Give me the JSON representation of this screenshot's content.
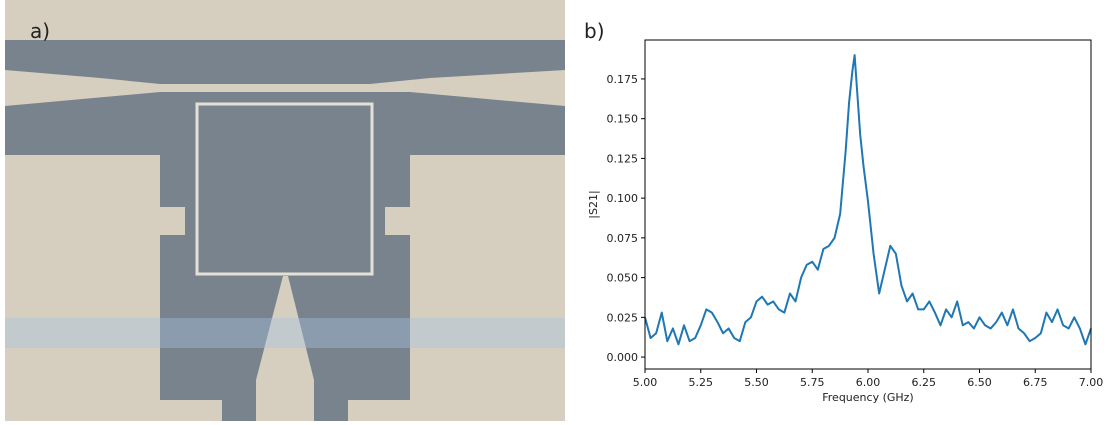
{
  "panel_labels": [
    "a)",
    "b)"
  ],
  "chart_data": {
    "type": "line",
    "xlabel": "Frequency (GHz)",
    "ylabel": "|S21|",
    "color": "#1f77b4",
    "x": [
      5.0,
      5.025,
      5.05,
      5.075,
      5.1,
      5.125,
      5.15,
      5.175,
      5.2,
      5.225,
      5.25,
      5.275,
      5.3,
      5.325,
      5.35,
      5.375,
      5.4,
      5.425,
      5.45,
      5.475,
      5.5,
      5.525,
      5.55,
      5.575,
      5.6,
      5.625,
      5.65,
      5.675,
      5.7,
      5.725,
      5.75,
      5.775,
      5.8,
      5.825,
      5.85,
      5.875,
      5.9,
      5.915,
      5.93,
      5.94,
      5.95,
      5.965,
      5.98,
      6.0,
      6.025,
      6.05,
      6.075,
      6.1,
      6.125,
      6.15,
      6.175,
      6.2,
      6.225,
      6.25,
      6.275,
      6.3,
      6.325,
      6.35,
      6.375,
      6.4,
      6.425,
      6.45,
      6.475,
      6.5,
      6.525,
      6.55,
      6.575,
      6.6,
      6.625,
      6.65,
      6.675,
      6.7,
      6.725,
      6.75,
      6.775,
      6.8,
      6.825,
      6.85,
      6.875,
      6.9,
      6.925,
      6.95,
      6.975,
      7.0
    ],
    "values": [
      0.025,
      0.012,
      0.015,
      0.028,
      0.01,
      0.018,
      0.008,
      0.02,
      0.01,
      0.012,
      0.02,
      0.03,
      0.028,
      0.022,
      0.015,
      0.018,
      0.012,
      0.01,
      0.022,
      0.025,
      0.035,
      0.038,
      0.033,
      0.035,
      0.03,
      0.028,
      0.04,
      0.035,
      0.05,
      0.058,
      0.06,
      0.055,
      0.068,
      0.07,
      0.075,
      0.09,
      0.13,
      0.16,
      0.18,
      0.19,
      0.17,
      0.14,
      0.12,
      0.098,
      0.065,
      0.04,
      0.055,
      0.07,
      0.065,
      0.045,
      0.035,
      0.04,
      0.03,
      0.03,
      0.035,
      0.028,
      0.02,
      0.03,
      0.025,
      0.035,
      0.02,
      0.022,
      0.018,
      0.025,
      0.02,
      0.018,
      0.022,
      0.028,
      0.02,
      0.03,
      0.018,
      0.015,
      0.01,
      0.012,
      0.015,
      0.028,
      0.022,
      0.03,
      0.02,
      0.018,
      0.025,
      0.018,
      0.008,
      0.018
    ],
    "xlim": [
      5.0,
      7.0
    ],
    "ylim": [
      -0.0075,
      0.1995
    ],
    "xticks": [
      {
        "value": 5.0,
        "label": "5.00"
      },
      {
        "value": 5.25,
        "label": "5.25"
      },
      {
        "value": 5.5,
        "label": "5.50"
      },
      {
        "value": 5.75,
        "label": "5.75"
      },
      {
        "value": 6.0,
        "label": "6.00"
      },
      {
        "value": 6.25,
        "label": "6.25"
      },
      {
        "value": 6.5,
        "label": "6.50"
      },
      {
        "value": 6.75,
        "label": "6.75"
      },
      {
        "value": 7.0,
        "label": "7.00"
      }
    ],
    "yticks": [
      {
        "value": 0,
        "label": "0.000"
      },
      {
        "value": 0.025,
        "label": "0.025"
      },
      {
        "value": 0.05,
        "label": "0.050"
      },
      {
        "value": 0.075,
        "label": "0.075"
      },
      {
        "value": 0.1,
        "label": "0.100"
      },
      {
        "value": 0.125,
        "label": "0.125"
      },
      {
        "value": 0.15,
        "label": "0.150"
      },
      {
        "value": 0.175,
        "label": "0.175"
      }
    ]
  }
}
